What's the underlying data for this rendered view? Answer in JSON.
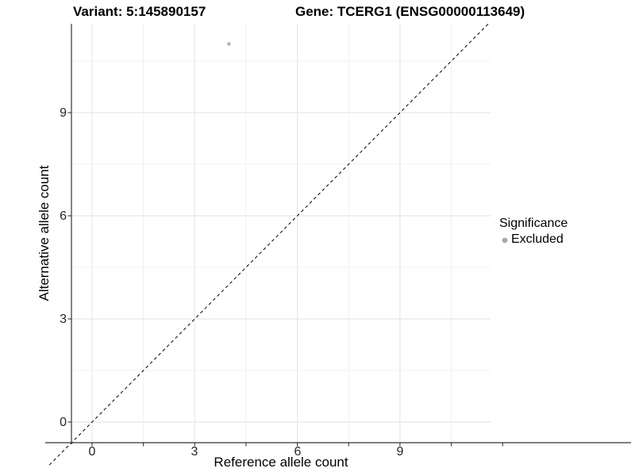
{
  "titles": {
    "variant": "Variant: 5:145890157",
    "gene": "Gene: TCERG1 (ENSG00000113649)"
  },
  "axes": {
    "x_label": "Reference allele count",
    "y_label": "Alternative allele count",
    "x_tick_labels": [
      "0",
      "3",
      "6",
      "9"
    ],
    "y_tick_labels": [
      "0",
      "3",
      "6",
      "9"
    ]
  },
  "legend": {
    "title": "Significance",
    "items": [
      {
        "label": "Excluded",
        "color": "#a9a9a9"
      }
    ]
  },
  "colors": {
    "background": "#ffffff",
    "point": "#b5b5b5",
    "grid_major": "#e8e8e8",
    "grid_minor": "#f1f1f1",
    "axis": "#333333",
    "identity_line": "#000000",
    "tick_text": "#262626"
  },
  "chart_data": {
    "type": "scatter",
    "title": "Variant: 5:145890157 | Gene: TCERG1 (ENSG00000113649)",
    "xlabel": "Reference allele count",
    "ylabel": "Alternative allele count",
    "xlim": [
      -0.55,
      11.55
    ],
    "ylim": [
      -0.55,
      11.55
    ],
    "x_breaks": [
      0,
      3,
      6,
      9
    ],
    "y_breaks": [
      0,
      3,
      6,
      9
    ],
    "x_minor_breaks": [
      1.5,
      4.5,
      7.5,
      10.5
    ],
    "y_minor_breaks": [
      1.5,
      4.5,
      7.5,
      10.5
    ],
    "x_axis_ticks": [
      0,
      1.5,
      3,
      4.5,
      6,
      7.5,
      9,
      10.5,
      12
    ],
    "y_axis_ticks": [
      0,
      3,
      6,
      9
    ],
    "grid": true,
    "legend_position": "right",
    "series": [
      {
        "name": "Excluded",
        "color": "#b5b5b5",
        "points": [
          {
            "x": 4,
            "y": 11
          }
        ]
      }
    ],
    "reference_line": {
      "type": "identity y=x",
      "style": "dashed",
      "color": "#000000"
    }
  }
}
